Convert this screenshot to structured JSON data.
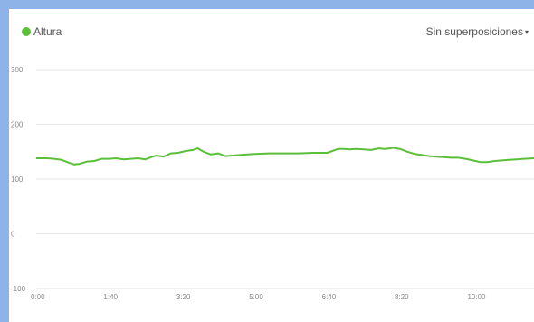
{
  "legend": {
    "label": "Altura",
    "color": "#5bbf3a"
  },
  "overlay_select": {
    "label": "Sin superposiciones",
    "caret": "▾"
  },
  "chart_data": {
    "type": "line",
    "ylim": [
      -100,
      300
    ],
    "y_ticks": [
      -100,
      0,
      100,
      200,
      300
    ],
    "x_range_seconds": [
      0,
      684
    ],
    "x_tick_labels": [
      "0:00",
      "1:40",
      "3:20",
      "5:00",
      "6:40",
      "8:20",
      "10:00"
    ],
    "x_tick_seconds": [
      0,
      100,
      200,
      300,
      400,
      500,
      600
    ],
    "grid": true,
    "series": [
      {
        "name": "Altura",
        "color": "#5bbf3a",
        "x_seconds": [
          0,
          15,
          25,
          35,
          45,
          52,
          60,
          70,
          80,
          90,
          100,
          110,
          120,
          130,
          140,
          150,
          160,
          165,
          175,
          185,
          195,
          205,
          215,
          222,
          230,
          240,
          250,
          260,
          270,
          280,
          290,
          300,
          320,
          340,
          360,
          380,
          400,
          415,
          425,
          430,
          440,
          450,
          460,
          470,
          480,
          490,
          500,
          510,
          520,
          530,
          540,
          550,
          560,
          570,
          580,
          590,
          600,
          610,
          620,
          630,
          640,
          650,
          660,
          670,
          684
        ],
        "y_values": [
          138,
          138,
          137,
          135,
          130,
          127,
          128,
          132,
          133,
          137,
          137,
          138,
          136,
          137,
          138,
          136,
          141,
          143,
          141,
          147,
          148,
          151,
          153,
          156,
          150,
          145,
          147,
          142,
          143,
          144,
          145,
          146,
          147,
          147,
          147,
          148,
          148,
          155,
          155,
          154,
          155,
          154,
          153,
          156,
          155,
          157,
          155,
          150,
          146,
          144,
          142,
          141,
          140,
          139,
          139,
          137,
          134,
          131,
          131,
          133,
          134,
          135,
          136,
          137,
          138
        ]
      }
    ]
  }
}
